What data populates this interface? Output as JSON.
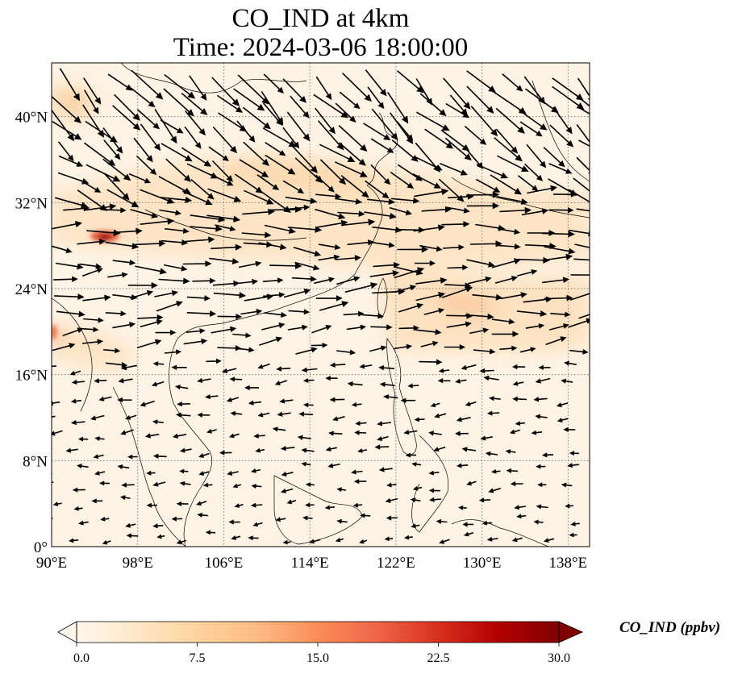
{
  "title": {
    "line1": "CO_IND at 4km",
    "line2": "Time: 2024-03-06 18:00:00"
  },
  "map": {
    "lon_range": [
      90,
      140
    ],
    "lat_range": [
      0,
      45
    ],
    "lon_ticks": [
      {
        "value": 90,
        "label": "90°E"
      },
      {
        "value": 98,
        "label": "98°E"
      },
      {
        "value": 106,
        "label": "106°E"
      },
      {
        "value": 114,
        "label": "114°E"
      },
      {
        "value": 122,
        "label": "122°E"
      },
      {
        "value": 130,
        "label": "130°E"
      },
      {
        "value": 138,
        "label": "138°E"
      }
    ],
    "lat_ticks": [
      {
        "value": 0,
        "label": "0°"
      },
      {
        "value": 8,
        "label": "8°N"
      },
      {
        "value": 16,
        "label": "16°N"
      },
      {
        "value": 24,
        "label": "24°N"
      },
      {
        "value": 32,
        "label": "32°N"
      },
      {
        "value": 40,
        "label": "40°N"
      }
    ],
    "gridlines": true,
    "colormap": "OrRd",
    "wind_vectors": true
  },
  "colorbar": {
    "label": "CO_IND (ppbv)",
    "min": 0,
    "max": 30,
    "ticks": [
      "0.0",
      "7.5",
      "15.0",
      "22.5",
      "30.0"
    ],
    "extend": "both",
    "colors": [
      "#fff7ec",
      "#fee8c8",
      "#fdd49e",
      "#fdbb84",
      "#fc8d59",
      "#ef6548",
      "#d7301f",
      "#b30000",
      "#7f0000"
    ]
  }
}
